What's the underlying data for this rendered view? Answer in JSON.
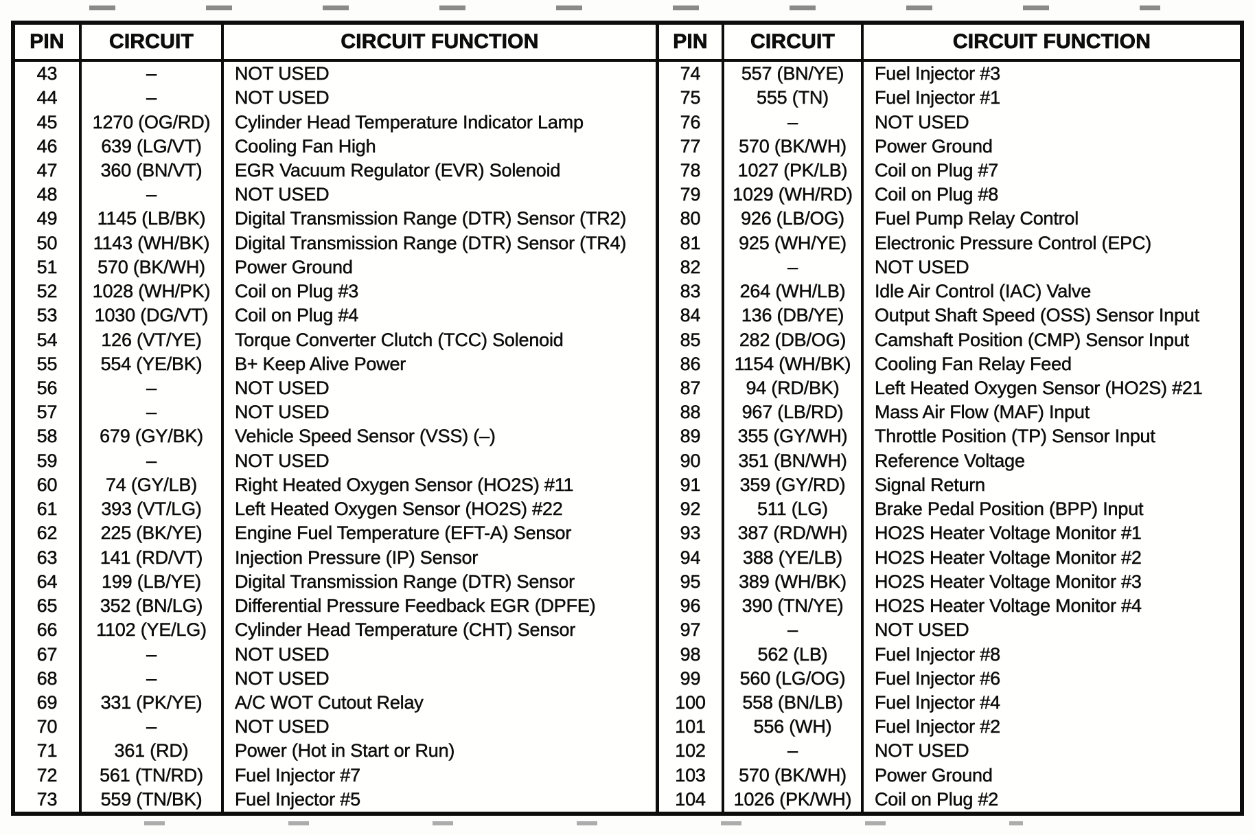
{
  "colors": {
    "ink": "#0d0d0d",
    "paper": "#fffffe"
  },
  "table": {
    "headers": {
      "pin": "PIN",
      "circuit": "CIRCUIT",
      "function": "CIRCUIT FUNCTION"
    },
    "left_rows": [
      {
        "pin": "43",
        "circuit": "–",
        "function": "NOT USED"
      },
      {
        "pin": "44",
        "circuit": "–",
        "function": "NOT USED"
      },
      {
        "pin": "45",
        "circuit": "1270 (OG/RD)",
        "function": "Cylinder Head Temperature Indicator Lamp"
      },
      {
        "pin": "46",
        "circuit": "639 (LG/VT)",
        "function": "Cooling Fan High"
      },
      {
        "pin": "47",
        "circuit": "360 (BN/VT)",
        "function": "EGR Vacuum Regulator (EVR) Solenoid"
      },
      {
        "pin": "48",
        "circuit": "–",
        "function": "NOT USED"
      },
      {
        "pin": "49",
        "circuit": "1145 (LB/BK)",
        "function": "Digital Transmission Range (DTR) Sensor (TR2)"
      },
      {
        "pin": "50",
        "circuit": "1143 (WH/BK)",
        "function": "Digital Transmission Range (DTR) Sensor (TR4)"
      },
      {
        "pin": "51",
        "circuit": "570 (BK/WH)",
        "function": "Power Ground"
      },
      {
        "pin": "52",
        "circuit": "1028 (WH/PK)",
        "function": "Coil on Plug #3"
      },
      {
        "pin": "53",
        "circuit": "1030 (DG/VT)",
        "function": "Coil on Plug #4"
      },
      {
        "pin": "54",
        "circuit": "126 (VT/YE)",
        "function": "Torque Converter Clutch (TCC) Solenoid"
      },
      {
        "pin": "55",
        "circuit": "554 (YE/BK)",
        "function": "B+ Keep Alive Power"
      },
      {
        "pin": "56",
        "circuit": "–",
        "function": "NOT USED"
      },
      {
        "pin": "57",
        "circuit": "–",
        "function": "NOT USED"
      },
      {
        "pin": "58",
        "circuit": "679 (GY/BK)",
        "function": "Vehicle Speed Sensor (VSS) (–)"
      },
      {
        "pin": "59",
        "circuit": "–",
        "function": "NOT USED"
      },
      {
        "pin": "60",
        "circuit": "74 (GY/LB)",
        "function": "Right Heated Oxygen Sensor (HO2S) #11"
      },
      {
        "pin": "61",
        "circuit": "393 (VT/LG)",
        "function": "Left Heated Oxygen Sensor (HO2S) #22"
      },
      {
        "pin": "62",
        "circuit": "225 (BK/YE)",
        "function": "Engine Fuel Temperature (EFT-A) Sensor"
      },
      {
        "pin": "63",
        "circuit": "141 (RD/VT)",
        "function": "Injection Pressure (IP) Sensor"
      },
      {
        "pin": "64",
        "circuit": "199 (LB/YE)",
        "function": "Digital Transmission Range (DTR) Sensor"
      },
      {
        "pin": "65",
        "circuit": "352 (BN/LG)",
        "function": "Differential Pressure Feedback EGR (DPFE)"
      },
      {
        "pin": "66",
        "circuit": "1102 (YE/LG)",
        "function": "Cylinder Head Temperature (CHT) Sensor"
      },
      {
        "pin": "67",
        "circuit": "–",
        "function": "NOT USED"
      },
      {
        "pin": "68",
        "circuit": "–",
        "function": "NOT USED"
      },
      {
        "pin": "69",
        "circuit": "331 (PK/YE)",
        "function": "A/C WOT Cutout Relay"
      },
      {
        "pin": "70",
        "circuit": "–",
        "function": "NOT USED"
      },
      {
        "pin": "71",
        "circuit": "361 (RD)",
        "function": "Power (Hot in Start or Run)"
      },
      {
        "pin": "72",
        "circuit": "561 (TN/RD)",
        "function": "Fuel Injector #7"
      },
      {
        "pin": "73",
        "circuit": "559 (TN/BK)",
        "function": "Fuel Injector #5"
      }
    ],
    "right_rows": [
      {
        "pin": "74",
        "circuit": "557 (BN/YE)",
        "function": "Fuel Injector #3"
      },
      {
        "pin": "75",
        "circuit": "555 (TN)",
        "function": "Fuel Injector #1"
      },
      {
        "pin": "76",
        "circuit": "–",
        "function": "NOT USED"
      },
      {
        "pin": "77",
        "circuit": "570 (BK/WH)",
        "function": "Power Ground"
      },
      {
        "pin": "78",
        "circuit": "1027 (PK/LB)",
        "function": "Coil on Plug #7"
      },
      {
        "pin": "79",
        "circuit": "1029 (WH/RD)",
        "function": "Coil on Plug #8"
      },
      {
        "pin": "80",
        "circuit": "926 (LB/OG)",
        "function": "Fuel Pump Relay Control"
      },
      {
        "pin": "81",
        "circuit": "925 (WH/YE)",
        "function": "Electronic Pressure Control (EPC)"
      },
      {
        "pin": "82",
        "circuit": "–",
        "function": "NOT USED"
      },
      {
        "pin": "83",
        "circuit": "264 (WH/LB)",
        "function": "Idle Air Control (IAC) Valve"
      },
      {
        "pin": "84",
        "circuit": "136 (DB/YE)",
        "function": "Output Shaft Speed (OSS) Sensor Input"
      },
      {
        "pin": "85",
        "circuit": "282 (DB/OG)",
        "function": "Camshaft Position (CMP) Sensor Input"
      },
      {
        "pin": "86",
        "circuit": "1154 (WH/BK)",
        "function": "Cooling Fan Relay Feed"
      },
      {
        "pin": "87",
        "circuit": "94 (RD/BK)",
        "function": "Left Heated Oxygen Sensor (HO2S) #21"
      },
      {
        "pin": "88",
        "circuit": "967 (LB/RD)",
        "function": "Mass Air Flow (MAF) Input"
      },
      {
        "pin": "89",
        "circuit": "355 (GY/WH)",
        "function": "Throttle Position (TP) Sensor Input"
      },
      {
        "pin": "90",
        "circuit": "351 (BN/WH)",
        "function": "Reference Voltage"
      },
      {
        "pin": "91",
        "circuit": "359 (GY/RD)",
        "function": "Signal Return"
      },
      {
        "pin": "92",
        "circuit": "511 (LG)",
        "function": "Brake Pedal Position (BPP) Input"
      },
      {
        "pin": "93",
        "circuit": "387 (RD/WH)",
        "function": "HO2S Heater Voltage Monitor #1"
      },
      {
        "pin": "94",
        "circuit": "388 (YE/LB)",
        "function": "HO2S Heater Voltage Monitor #2"
      },
      {
        "pin": "95",
        "circuit": "389 (WH/BK)",
        "function": "HO2S Heater Voltage Monitor #3"
      },
      {
        "pin": "96",
        "circuit": "390 (TN/YE)",
        "function": "HO2S Heater Voltage Monitor #4"
      },
      {
        "pin": "97",
        "circuit": "–",
        "function": "NOT USED"
      },
      {
        "pin": "98",
        "circuit": "562 (LB)",
        "function": "Fuel Injector #8"
      },
      {
        "pin": "99",
        "circuit": "560 (LG/OG)",
        "function": "Fuel Injector #6"
      },
      {
        "pin": "100",
        "circuit": "558 (BN/LB)",
        "function": "Fuel Injector #4"
      },
      {
        "pin": "101",
        "circuit": "556 (WH)",
        "function": "Fuel Injector #2"
      },
      {
        "pin": "102",
        "circuit": "–",
        "function": "NOT USED"
      },
      {
        "pin": "103",
        "circuit": "570 (BK/WH)",
        "function": "Power Ground"
      },
      {
        "pin": "104",
        "circuit": "1026 (PK/WH)",
        "function": "Coil on Plug #2"
      }
    ]
  }
}
